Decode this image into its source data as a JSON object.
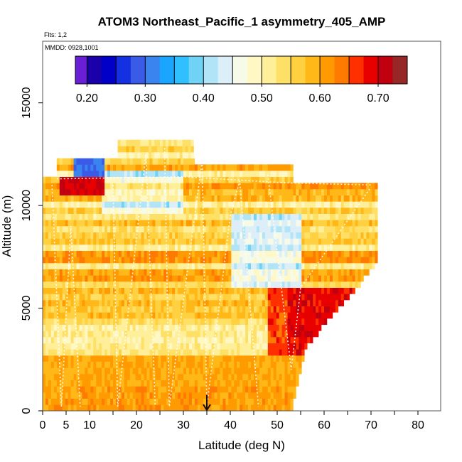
{
  "chart_data": {
    "type": "heatmap",
    "title": "ATOM3 Northeast_Pacific_1 asymmetry_405_AMP",
    "flights_label": "Flts: 1,2",
    "dates_label": "MMDD: 0928,1001",
    "xlabel": "Latitude (deg N)",
    "ylabel": "Altitude (m)",
    "xlim": [
      0,
      85
    ],
    "ylim": [
      0,
      18000
    ],
    "x_ticks": [
      0,
      5,
      10,
      20,
      30,
      40,
      50,
      60,
      70,
      80
    ],
    "x_tick_labels": [
      "0",
      "5",
      "10",
      "20",
      "30",
      "40",
      "50",
      "60",
      "70",
      "80"
    ],
    "y_ticks": [
      0,
      5000,
      10000,
      15000
    ],
    "y_tick_labels": [
      "0",
      "5000",
      "10000",
      "15000"
    ],
    "colorbar": {
      "min": 0.18,
      "max": 0.75,
      "boundaries": [
        0.18,
        0.2,
        0.225,
        0.25,
        0.275,
        0.3,
        0.325,
        0.35,
        0.375,
        0.4,
        0.425,
        0.45,
        0.475,
        0.5,
        0.525,
        0.55,
        0.575,
        0.6,
        0.625,
        0.65,
        0.675,
        0.7,
        0.725,
        0.75
      ],
      "colors": [
        "#6a1fd6",
        "#1a00a8",
        "#0000c8",
        "#1430e0",
        "#3a5ae8",
        "#3a84f0",
        "#1aa6ff",
        "#30c0ff",
        "#70d2f5",
        "#b2e4f8",
        "#dceff8",
        "#f5fbe8",
        "#fff7c4",
        "#ffef99",
        "#ffe066",
        "#ffd040",
        "#ffb818",
        "#ff9a00",
        "#ff7a00",
        "#ff3000",
        "#e80000",
        "#c00010",
        "#962828"
      ],
      "tick_values": [
        0.2,
        0.3,
        0.4,
        0.5,
        0.6,
        0.7
      ],
      "tick_labels": [
        "0.20",
        "0.30",
        "0.40",
        "0.50",
        "0.60",
        "0.70"
      ]
    },
    "marker": {
      "label": "arrow",
      "latitude": 35
    }
  }
}
